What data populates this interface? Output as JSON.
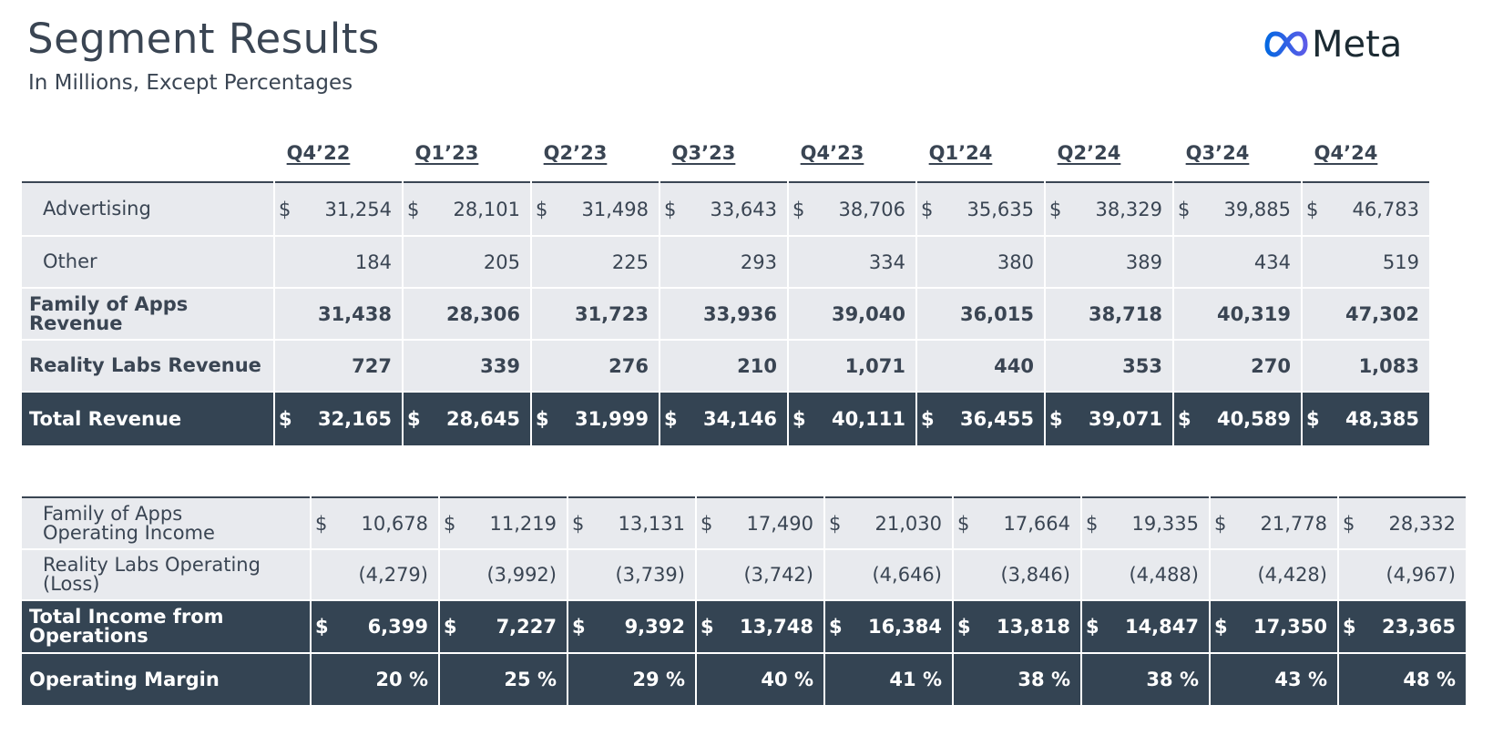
{
  "header": {
    "title": "Segment Results",
    "subtitle": "In Millions, Except Percentages",
    "logo": "Meta"
  },
  "columns": [
    "Q4’22",
    "Q1’23",
    "Q2’23",
    "Q3’23",
    "Q4’23",
    "Q1’24",
    "Q2’24",
    "Q3’24",
    "Q4’24"
  ],
  "currency": "$",
  "revenue_table": [
    {
      "label": "Advertising",
      "style": "ind",
      "dollar": true,
      "values": [
        "31,254",
        "28,101",
        "31,498",
        "33,643",
        "38,706",
        "35,635",
        "38,329",
        "39,885",
        "46,783"
      ]
    },
    {
      "label": "Other",
      "style": "ind",
      "dollar": false,
      "values": [
        "184",
        "205",
        "225",
        "293",
        "334",
        "380",
        "389",
        "434",
        "519"
      ]
    },
    {
      "label": "Family of Apps Revenue",
      "style": "bold",
      "dollar": false,
      "values": [
        "31,438",
        "28,306",
        "31,723",
        "33,936",
        "39,040",
        "36,015",
        "38,718",
        "40,319",
        "47,302"
      ]
    },
    {
      "label": "Reality Labs Revenue",
      "style": "bold",
      "dollar": false,
      "values": [
        "727",
        "339",
        "276",
        "210",
        "1,071",
        "440",
        "353",
        "270",
        "1,083"
      ]
    },
    {
      "label": "Total Revenue",
      "style": "dark",
      "dollar": true,
      "values": [
        "32,165",
        "28,645",
        "31,999",
        "34,146",
        "40,111",
        "36,455",
        "39,071",
        "40,589",
        "48,385"
      ]
    }
  ],
  "income_table": [
    {
      "label": "Family of Apps Operating Income",
      "style": "ind",
      "dollar": true,
      "values": [
        "10,678",
        "11,219",
        "13,131",
        "17,490",
        "21,030",
        "17,664",
        "19,335",
        "21,778",
        "28,332"
      ]
    },
    {
      "label": "Reality Labs Operating (Loss)",
      "style": "ind",
      "dollar": false,
      "values": [
        "(4,279)",
        "(3,992)",
        "(3,739)",
        "(3,742)",
        "(4,646)",
        "(3,846)",
        "(4,488)",
        "(4,428)",
        "(4,967)"
      ]
    },
    {
      "label": "Total Income from Operations",
      "style": "dark",
      "dollar": true,
      "values": [
        "6,399",
        "7,227",
        "9,392",
        "13,748",
        "16,384",
        "13,818",
        "14,847",
        "17,350",
        "23,365"
      ]
    },
    {
      "label": "Operating Margin",
      "style": "dark",
      "dollar": false,
      "values": [
        "20 %",
        "25 %",
        "29 %",
        "40 %",
        "41 %",
        "38 %",
        "38 %",
        "43 %",
        "48 %"
      ]
    }
  ],
  "colors": {
    "dark_row": "#344453",
    "light_row": "#e8eaee",
    "text": "#3a4553",
    "logo_blue": "#0668E1"
  }
}
